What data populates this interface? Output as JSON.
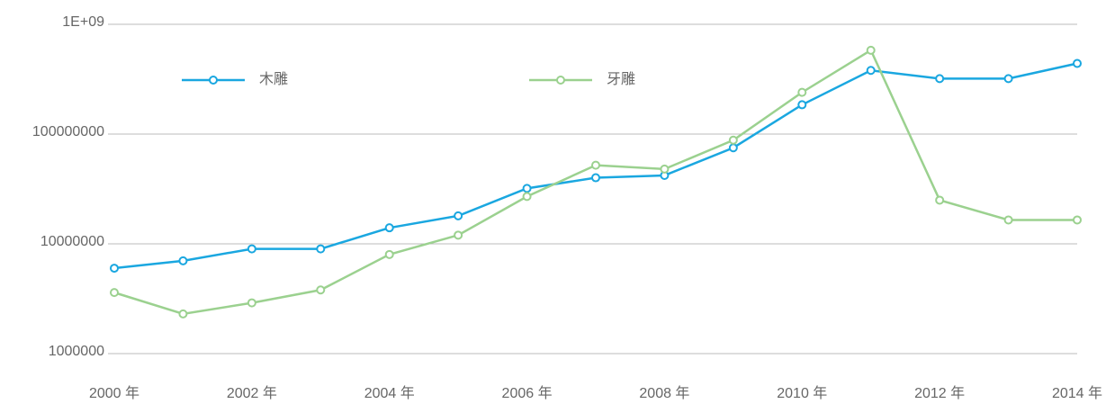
{
  "chart_data": {
    "type": "line",
    "categories": [
      "2000 年",
      null,
      "2002 年",
      null,
      "2004 年",
      null,
      "2006 年",
      null,
      "2008 年",
      null,
      "2010 年",
      null,
      "2012 年",
      null,
      "2014 年"
    ],
    "series": [
      {
        "name": "木雕",
        "color": "#1aa7e0",
        "values": [
          6000000,
          7000000,
          9000000,
          9000000,
          14000000,
          18000000,
          32000000,
          40000000,
          42000000,
          75000000,
          185000000,
          380000000,
          320000000,
          320000000,
          440000000
        ]
      },
      {
        "name": "牙雕",
        "color": "#9bd18f",
        "values": [
          3600000,
          2300000,
          2900000,
          3800000,
          8000000,
          12000000,
          27000000,
          52000000,
          48000000,
          88000000,
          240000000,
          580000000,
          25000000,
          16500000,
          16500000
        ]
      }
    ],
    "ylim": [
      1000000,
      1000000000
    ],
    "yticks": [
      1000000,
      10000000,
      100000000,
      {
        "value": 1000000000,
        "label": "1E+09"
      }
    ],
    "log_scale": true,
    "grid": true,
    "legend": "top"
  }
}
